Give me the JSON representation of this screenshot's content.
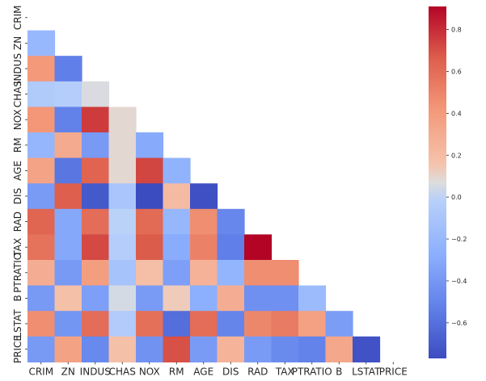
{
  "chart_data": {
    "type": "heatmap",
    "title": "",
    "xlabel": "",
    "ylabel": "",
    "mask": "upper-triangle-including-diagonal",
    "rows": [
      "CRIM",
      "ZN",
      "INDUS",
      "CHAS",
      "NOX",
      "RM",
      "AGE",
      "DIS",
      "RAD",
      "TAX",
      "PTRATIO",
      "B",
      "LSTAT",
      "PRICE"
    ],
    "columns": [
      "CRIM",
      "ZN",
      "INDUS",
      "CHAS",
      "NOX",
      "RM",
      "AGE",
      "DIS",
      "RAD",
      "TAX",
      "PTRATIO",
      "B",
      "LSTAT",
      "PRICE"
    ],
    "row_tick_labels": [
      "CRIM",
      "ZN",
      "INDUS",
      "CHAS",
      "NOX",
      "RM",
      "AGE",
      "DIS",
      "RAD",
      "TAX",
      "PTRATIO",
      "B",
      "LSTAT",
      "PRICE"
    ],
    "col_tick_labels": [
      "CRIM",
      "ZN",
      "INDUS",
      "CHAS",
      "NOX",
      "RM",
      "AGE",
      "DIS",
      "RAD",
      "TAX",
      "PTRATIO",
      "B",
      "LSTAT",
      "PRICE"
    ],
    "values": [
      [
        null,
        null,
        null,
        null,
        null,
        null,
        null,
        null,
        null,
        null,
        null,
        null,
        null,
        null
      ],
      [
        -0.2,
        null,
        null,
        null,
        null,
        null,
        null,
        null,
        null,
        null,
        null,
        null,
        null,
        null
      ],
      [
        0.41,
        -0.53,
        null,
        null,
        null,
        null,
        null,
        null,
        null,
        null,
        null,
        null,
        null,
        null
      ],
      [
        -0.06,
        -0.04,
        0.06,
        null,
        null,
        null,
        null,
        null,
        null,
        null,
        null,
        null,
        null,
        null
      ],
      [
        0.42,
        -0.52,
        0.76,
        0.09,
        null,
        null,
        null,
        null,
        null,
        null,
        null,
        null,
        null,
        null
      ],
      [
        -0.22,
        0.31,
        -0.39,
        0.09,
        -0.3,
        null,
        null,
        null,
        null,
        null,
        null,
        null,
        null,
        null
      ],
      [
        0.35,
        -0.57,
        0.64,
        0.09,
        0.73,
        -0.24,
        null,
        null,
        null,
        null,
        null,
        null,
        null,
        null
      ],
      [
        -0.38,
        0.66,
        -0.71,
        -0.1,
        -0.77,
        0.21,
        -0.75,
        null,
        null,
        null,
        null,
        null,
        null,
        null
      ],
      [
        0.63,
        -0.31,
        0.6,
        -0.01,
        0.61,
        -0.21,
        0.46,
        -0.49,
        null,
        null,
        null,
        null,
        null,
        null
      ],
      [
        0.58,
        -0.31,
        0.72,
        -0.04,
        0.67,
        -0.29,
        0.51,
        -0.53,
        0.91,
        null,
        null,
        null,
        null,
        null
      ],
      [
        0.29,
        -0.39,
        0.38,
        -0.12,
        0.19,
        -0.36,
        0.26,
        -0.23,
        0.46,
        0.46,
        null,
        null,
        null,
        null
      ],
      [
        -0.39,
        0.18,
        -0.36,
        0.05,
        -0.38,
        0.13,
        -0.27,
        0.29,
        -0.44,
        -0.44,
        -0.18,
        null,
        null,
        null
      ],
      [
        0.46,
        -0.41,
        0.6,
        -0.05,
        0.59,
        -0.61,
        0.6,
        -0.5,
        0.49,
        0.54,
        0.37,
        -0.37,
        null,
        null
      ],
      [
        -0.39,
        0.36,
        -0.48,
        0.18,
        -0.43,
        0.7,
        -0.38,
        0.25,
        -0.38,
        -0.47,
        -0.51,
        0.33,
        -0.74,
        null
      ]
    ],
    "colormap": "coolwarm",
    "vmin": -0.77,
    "vmax": 0.91,
    "colorbar_ticks": [
      0.8,
      0.6,
      0.4,
      0.2,
      0.0,
      -0.2,
      -0.4,
      -0.6
    ],
    "colorbar_tick_labels": [
      "0.8",
      "0.6",
      "0.4",
      "0.2",
      "0.0",
      "−0.2",
      "−0.4",
      "−0.6"
    ],
    "grid": false,
    "legend": "colorbar-right"
  }
}
